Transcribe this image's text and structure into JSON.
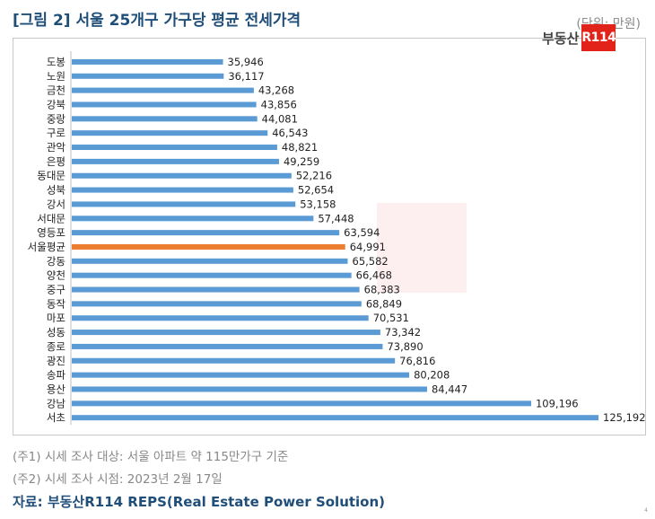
{
  "title": "[그림 2] 서울 25개구 가구당 평균 전세가격",
  "unit": "(단위: 만원)",
  "logo": {
    "text": "부동산",
    "mark": "R114"
  },
  "notes": [
    "(주1) 시세 조사 대상: 서울 아파트 약 115만가구 기준",
    "(주2) 시세 조사 시점: 2023년 2월 17일"
  ],
  "source": "자료: 부동산R114 REPS(Real Estate Power Solution)",
  "page_number": "4",
  "colors": {
    "bar": "#5b9bd5",
    "highlight": "#ed7d31",
    "title": "#1f4e79",
    "brand": "#e2231a"
  },
  "chart_data": {
    "type": "bar",
    "orientation": "horizontal",
    "categories": [
      "도봉",
      "노원",
      "금천",
      "강북",
      "중랑",
      "구로",
      "관악",
      "은평",
      "동대문",
      "성북",
      "강서",
      "서대문",
      "영등포",
      "서울평균",
      "강동",
      "양천",
      "중구",
      "동작",
      "마포",
      "성동",
      "종로",
      "광진",
      "송파",
      "용산",
      "강남",
      "서초"
    ],
    "values": [
      35946,
      36117,
      43268,
      43856,
      44081,
      46543,
      48821,
      49259,
      52216,
      52654,
      53158,
      57448,
      63594,
      64991,
      65582,
      66468,
      68383,
      68849,
      70531,
      73342,
      73890,
      76816,
      80208,
      84447,
      109196,
      125192
    ],
    "value_labels": [
      "35,946",
      "36,117",
      "43,268",
      "43,856",
      "44,081",
      "46,543",
      "48,821",
      "49,259",
      "52,216",
      "52,654",
      "53,158",
      "57,448",
      "63,594",
      "64,991",
      "65,582",
      "66,468",
      "68,383",
      "68,849",
      "70,531",
      "73,342",
      "73,890",
      "76,816",
      "80,208",
      "84,447",
      "109,196",
      "125,192"
    ],
    "highlight": "서울평균",
    "xlim": [
      0,
      125192
    ],
    "grid": false,
    "legend": "none"
  }
}
